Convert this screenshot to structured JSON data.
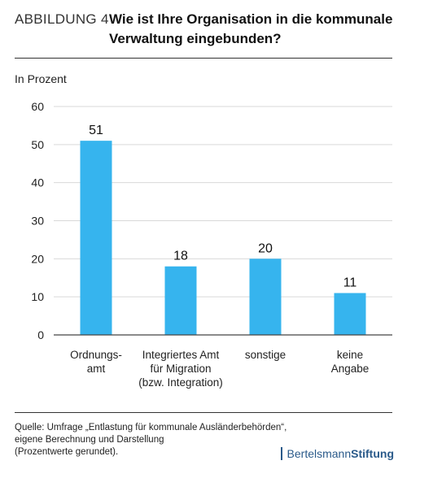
{
  "header": {
    "figure_label": "ABBILDUNG 4",
    "title_line1": "Wie ist Ihre Organisation in die kommunale",
    "title_line2": "Verwaltung eingebunden?"
  },
  "chart_data": {
    "type": "bar",
    "title": "Wie ist Ihre Organisation in die kommunale Verwaltung eingebunden?",
    "ylabel": "In Prozent",
    "categories": [
      [
        "Ordnungs-",
        "amt"
      ],
      [
        "Integriertes Amt",
        "für Migration",
        "(bzw. Integration)"
      ],
      [
        "sonstige"
      ],
      [
        "keine",
        "Angabe"
      ]
    ],
    "values": [
      51,
      18,
      20,
      11
    ],
    "ylim": [
      0,
      60
    ],
    "yticks": [
      0,
      10,
      20,
      30,
      40,
      50,
      60
    ],
    "grid": true,
    "colors": {
      "bar": "#36b4ee",
      "grid": "#d9d9d9",
      "axis": "#444444"
    }
  },
  "footer": {
    "source_lines": [
      "Quelle: Umfrage „Entlastung für kommunale Ausländerbehörden“,",
      "eigene Berechnung und Darstellung",
      "(Prozentwerte gerundet)."
    ],
    "brand_part1": "Bertelsmann",
    "brand_part2": "Stiftung"
  }
}
